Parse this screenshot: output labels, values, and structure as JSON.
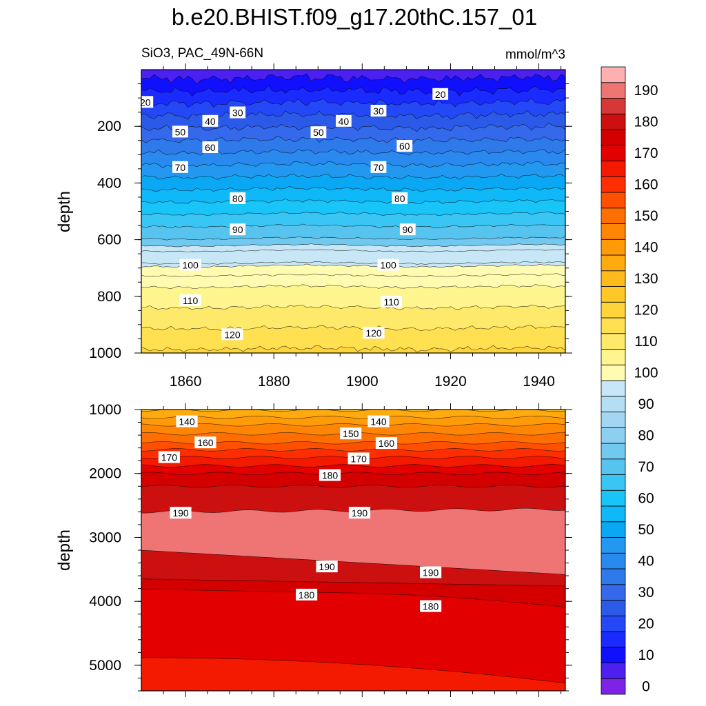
{
  "chart_data": {
    "type": "contour",
    "title": "b.e20.BHIST.f09_g17.20thC.157_01",
    "variable_label": "SiO3, PAC_49N-66N",
    "units_label": "mmol/m^3",
    "x_range": [
      1850,
      1946
    ],
    "x_ticks": [
      "1860",
      "1880",
      "1900",
      "1920",
      "1940"
    ],
    "panels": [
      {
        "name": "upper",
        "ylabel": "depth",
        "ylim": [
          0,
          1000
        ],
        "y_ticks": [
          "200",
          "400",
          "600",
          "800",
          "1000"
        ],
        "contour_labels": [
          {
            "text": "20",
            "year": 1850.9,
            "depth": 115
          },
          {
            "text": "20",
            "year": 1917.7,
            "depth": 87
          },
          {
            "text": "30",
            "year": 1871.8,
            "depth": 152
          },
          {
            "text": "30",
            "year": 1903.7,
            "depth": 146
          },
          {
            "text": "40",
            "year": 1865.6,
            "depth": 182
          },
          {
            "text": "40",
            "year": 1895.8,
            "depth": 182
          },
          {
            "text": "50",
            "year": 1858.8,
            "depth": 220
          },
          {
            "text": "50",
            "year": 1890.1,
            "depth": 222
          },
          {
            "text": "60",
            "year": 1865.6,
            "depth": 275
          },
          {
            "text": "60",
            "year": 1909.6,
            "depth": 270
          },
          {
            "text": "70",
            "year": 1858.8,
            "depth": 345
          },
          {
            "text": "70",
            "year": 1903.7,
            "depth": 345
          },
          {
            "text": "80",
            "year": 1871.8,
            "depth": 455
          },
          {
            "text": "80",
            "year": 1908.5,
            "depth": 455
          },
          {
            "text": "90",
            "year": 1871.8,
            "depth": 565
          },
          {
            "text": "90",
            "year": 1910.3,
            "depth": 565
          },
          {
            "text": "100",
            "year": 1861.1,
            "depth": 690
          },
          {
            "text": "100",
            "year": 1905.9,
            "depth": 690
          },
          {
            "text": "110",
            "year": 1861.1,
            "depth": 815
          },
          {
            "text": "110",
            "year": 1906.6,
            "depth": 820
          },
          {
            "text": "120",
            "year": 1870.6,
            "depth": 935
          },
          {
            "text": "120",
            "year": 1902.6,
            "depth": 930
          }
        ]
      },
      {
        "name": "lower",
        "ylabel": "depth",
        "ylim": [
          1000,
          5400
        ],
        "y_ticks": [
          "1000",
          "2000",
          "3000",
          "4000",
          "5000"
        ],
        "contour_labels": [
          {
            "text": "140",
            "year": 1860.3,
            "depth": 1190
          },
          {
            "text": "140",
            "year": 1903.7,
            "depth": 1190
          },
          {
            "text": "150",
            "year": 1897.4,
            "depth": 1380
          },
          {
            "text": "160",
            "year": 1864.5,
            "depth": 1520
          },
          {
            "text": "160",
            "year": 1905.5,
            "depth": 1530
          },
          {
            "text": "170",
            "year": 1856.3,
            "depth": 1750
          },
          {
            "text": "170",
            "year": 1899.2,
            "depth": 1770
          },
          {
            "text": "180",
            "year": 1892.7,
            "depth": 2030
          },
          {
            "text": "190",
            "year": 1858.9,
            "depth": 2620
          },
          {
            "text": "190",
            "year": 1899.4,
            "depth": 2620
          },
          {
            "text": "190",
            "year": 1892.0,
            "depth": 3460
          },
          {
            "text": "190",
            "year": 1915.5,
            "depth": 3550
          },
          {
            "text": "180",
            "year": 1887.4,
            "depth": 3900
          },
          {
            "text": "180",
            "year": 1915.5,
            "depth": 4080
          }
        ]
      }
    ],
    "colorbar": {
      "levels": [
        0,
        5,
        10,
        15,
        20,
        25,
        30,
        35,
        40,
        45,
        50,
        55,
        60,
        65,
        70,
        75,
        80,
        85,
        90,
        95,
        100,
        105,
        110,
        115,
        120,
        125,
        130,
        135,
        140,
        145,
        150,
        155,
        160,
        165,
        170,
        175,
        180,
        185,
        190,
        195
      ],
      "tick_labels": [
        "0",
        "10",
        "20",
        "30",
        "40",
        "50",
        "60",
        "70",
        "80",
        "90",
        "100",
        "110",
        "120",
        "130",
        "140",
        "150",
        "160",
        "170",
        "180",
        "190"
      ],
      "colors": [
        "#7e22e8",
        "#4b20f0",
        "#1010ff",
        "#1a2bff",
        "#2448f5",
        "#2c5ae8",
        "#3369ea",
        "#2f7aea",
        "#2a89ee",
        "#2298f0",
        "#0aa8f4",
        "#0fb8f6",
        "#18c4f8",
        "#3ac6f4",
        "#56c4ef",
        "#72c9f0",
        "#8ccff1",
        "#a2d6f2",
        "#b4def4",
        "#c7e6f6",
        "#fffbb0",
        "#fff58e",
        "#ffe96a",
        "#ffe050",
        "#ffd43a",
        "#ffc826",
        "#ffbb1c",
        "#ffab10",
        "#ff9a08",
        "#ff8604",
        "#ff6e00",
        "#ff5000",
        "#ff2e00",
        "#f31a00",
        "#e20000",
        "#d40000",
        "#cc1010",
        "#d63838",
        "#ef7575",
        "#feb0b0"
      ]
    }
  }
}
